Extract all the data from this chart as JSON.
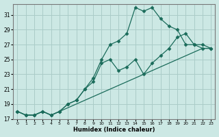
{
  "xlabel": "Humidex (Indice chaleur)",
  "bg_color": "#cce8e4",
  "grid_color": "#aaccc8",
  "line_color": "#1a6b5a",
  "xlim": [
    -0.5,
    23.5
  ],
  "ylim": [
    17,
    32.5
  ],
  "xticks": [
    0,
    1,
    2,
    3,
    4,
    5,
    6,
    7,
    8,
    9,
    10,
    11,
    12,
    13,
    14,
    15,
    16,
    17,
    18,
    19,
    20,
    21,
    22,
    23
  ],
  "yticks": [
    17,
    19,
    21,
    23,
    25,
    27,
    29,
    31
  ],
  "line1_x": [
    0,
    1,
    2,
    3,
    4,
    5,
    6,
    7,
    8,
    9,
    10,
    11,
    12,
    13,
    14,
    15,
    16,
    17,
    18,
    19,
    20,
    21,
    22,
    23
  ],
  "line1_y": [
    18,
    17.5,
    17.5,
    18,
    17.5,
    18,
    18.5,
    19,
    19.5,
    20,
    20.5,
    21,
    21.5,
    22,
    22.5,
    23,
    23.5,
    24,
    24.5,
    25,
    25.5,
    26,
    26.5,
    26.5
  ],
  "line2_x": [
    0,
    1,
    2,
    3,
    4,
    5,
    6,
    7,
    8,
    9,
    10,
    11,
    12,
    13,
    14,
    15,
    16,
    17,
    18,
    19,
    20,
    21,
    22,
    23
  ],
  "line2_y": [
    18,
    17.5,
    17.5,
    18,
    17.5,
    18,
    19,
    19.5,
    21,
    22,
    24.5,
    25,
    23.5,
    24,
    25,
    23,
    24.5,
    25.5,
    26.5,
    28,
    28.5,
    27,
    27,
    26.5
  ],
  "line3_x": [
    0,
    1,
    2,
    3,
    4,
    5,
    6,
    7,
    8,
    9,
    10,
    11,
    12,
    13,
    14,
    15,
    16,
    17,
    18,
    19,
    20,
    21,
    22,
    23
  ],
  "line3_y": [
    18,
    17.5,
    17.5,
    18,
    17.5,
    18,
    19,
    19.5,
    21,
    22.5,
    25,
    27,
    27.5,
    28.5,
    32,
    31.5,
    32,
    30.5,
    29.5,
    29,
    27,
    27,
    26.5,
    26.5
  ]
}
